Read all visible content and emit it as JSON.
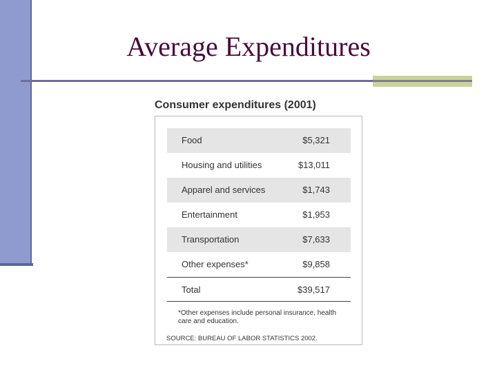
{
  "slide": {
    "title": "Average Expenditures"
  },
  "figure": {
    "title": "Consumer expenditures (2001)",
    "rows": [
      {
        "label": "Food",
        "value": "$5,321"
      },
      {
        "label": "Housing and utilities",
        "value": "$13,011"
      },
      {
        "label": "Apparel and services",
        "value": "$1,743"
      },
      {
        "label": "Entertainment",
        "value": "$1,953"
      },
      {
        "label": "Transportation",
        "value": "$7,633"
      },
      {
        "label": "Other expenses*",
        "value": "$9,858"
      }
    ],
    "total": {
      "label": "Total",
      "value": "$39,517"
    },
    "footnote": "*Other expenses include personal insurance, health care and education.",
    "source": "SOURCE: BUREAU OF LABOR STATISTICS 2002."
  },
  "colors": {
    "title": "#4a0a3a",
    "left_bar": "#8f9bcf",
    "rule": "#6d6d9a",
    "rule_accent": "#c9d39a",
    "row_shade": "#e5e5e5"
  }
}
